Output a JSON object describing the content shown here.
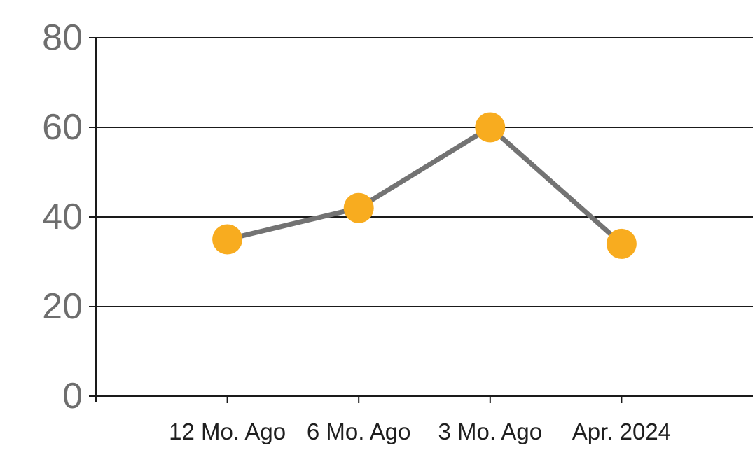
{
  "chart_data": {
    "type": "line",
    "title": "",
    "xlabel": "",
    "ylabel": "",
    "categories": [
      "12 Mo. Ago",
      "6 Mo. Ago",
      "3 Mo. Ago",
      "Apr. 2024"
    ],
    "series": [
      {
        "name": "series-1",
        "values": [
          35,
          42,
          60,
          34
        ]
      }
    ],
    "ylim": [
      0,
      80
    ],
    "yticks": [
      0,
      20,
      40,
      60,
      80
    ],
    "grid": true,
    "legend": false,
    "colors": {
      "line": "#737373",
      "marker": "#F8AC1F",
      "gridline": "#1a1a1a",
      "axis": "#1a1a1a",
      "ytick_label": "#6E6E6E",
      "xtick_label": "#1F1F1F",
      "background": "#FFFFFF"
    }
  }
}
